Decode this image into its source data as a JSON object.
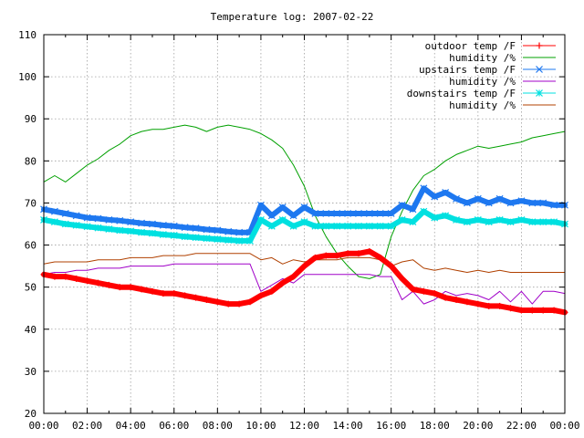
{
  "chart_data": {
    "type": "line",
    "title": "Temperature log: 2007-02-22",
    "xlabel": "",
    "ylabel": "",
    "xlim": [
      "00:00",
      "24:00"
    ],
    "ylim": [
      20,
      110
    ],
    "grid": true,
    "legend_placement": "top-right",
    "x_ticks": [
      "00:00",
      "02:00",
      "04:00",
      "06:00",
      "08:00",
      "10:00",
      "12:00",
      "14:00",
      "16:00",
      "18:00",
      "20:00",
      "22:00",
      "00:00"
    ],
    "y_ticks": [
      "20",
      "30",
      "40",
      "50",
      "60",
      "70",
      "80",
      "90",
      "100",
      "110"
    ],
    "x_hours": [
      0,
      0.5,
      1,
      1.5,
      2,
      2.5,
      3,
      3.5,
      4,
      4.5,
      5,
      5.5,
      6,
      6.5,
      7,
      7.5,
      8,
      8.5,
      9,
      9.5,
      10,
      10.5,
      11,
      11.5,
      12,
      12.5,
      13,
      13.5,
      14,
      14.5,
      15,
      15.5,
      16,
      16.5,
      17,
      17.5,
      18,
      18.5,
      19,
      19.5,
      20,
      20.5,
      21,
      21.5,
      22,
      22.5,
      23,
      23.5,
      24
    ],
    "series": [
      {
        "name": "outdoor temp /F",
        "color": "#ff0000",
        "marker": "plus",
        "values": [
          53,
          52.5,
          52.5,
          52,
          51.5,
          51,
          50.5,
          50,
          50,
          49.5,
          49,
          48.5,
          48.5,
          48,
          47.5,
          47,
          46.5,
          46,
          46,
          46.5,
          48,
          49,
          51,
          52.5,
          55,
          57,
          57.5,
          57.5,
          58,
          58,
          58.5,
          57,
          55,
          52,
          49.5,
          49,
          48.5,
          47.5,
          47,
          46.5,
          46,
          45.5,
          45.5,
          45,
          44.5,
          44.5,
          44.5,
          44.5,
          44
        ]
      },
      {
        "name": "humidity /%",
        "color": "#00a000",
        "marker": "none",
        "values": [
          75,
          76.5,
          75,
          77,
          79,
          80.5,
          82.5,
          84,
          86,
          87,
          87.5,
          87.5,
          88,
          88.5,
          88,
          87,
          88,
          88.5,
          88,
          87.5,
          86.5,
          85,
          83,
          79,
          74,
          67,
          62,
          58,
          55,
          52.5,
          52,
          53,
          62,
          68,
          73,
          76.5,
          78,
          80,
          81.5,
          82.5,
          83.5,
          83,
          83.5,
          84,
          84.5,
          85.5,
          86,
          86.5,
          87
        ]
      },
      {
        "name": "upstairs temp /F",
        "color": "#1e78f0",
        "marker": "x",
        "values": [
          68.5,
          68,
          67.5,
          67,
          66.5,
          66.3,
          66,
          65.8,
          65.5,
          65.2,
          65,
          64.7,
          64.5,
          64.2,
          64,
          63.7,
          63.5,
          63.2,
          63,
          63,
          69.5,
          67,
          69,
          67,
          69,
          67.5,
          67.5,
          67.5,
          67.5,
          67.5,
          67.5,
          67.5,
          67.5,
          69.5,
          68.5,
          73.5,
          71.5,
          72.5,
          71,
          70,
          71,
          70,
          71,
          70,
          70.5,
          70,
          70,
          69.5,
          69.5
        ]
      },
      {
        "name": "humidity /%",
        "color": "#a000c8",
        "marker": "none",
        "values": [
          53,
          53.5,
          53.5,
          54,
          54,
          54.5,
          54.5,
          54.5,
          55,
          55,
          55,
          55,
          55.5,
          55.5,
          55.5,
          55.5,
          55.5,
          55.5,
          55.5,
          55.5,
          49,
          50.5,
          52,
          51,
          53,
          53,
          53,
          53,
          53,
          53,
          53,
          52.5,
          52.5,
          47,
          49,
          46,
          47,
          49,
          48,
          48.5,
          48,
          47,
          49,
          46.5,
          49,
          46,
          49,
          49,
          48.5
        ]
      },
      {
        "name": "downstairs temp /F",
        "color": "#00e0e0",
        "marker": "star",
        "values": [
          66,
          65.5,
          65,
          64.7,
          64.4,
          64.1,
          63.8,
          63.5,
          63.3,
          63,
          62.8,
          62.5,
          62.3,
          62,
          61.8,
          61.6,
          61.4,
          61.2,
          61,
          61,
          66,
          64.5,
          66,
          64.5,
          65.5,
          64.5,
          64.5,
          64.5,
          64.5,
          64.5,
          64.5,
          64.5,
          64.5,
          66,
          65.5,
          68,
          66.5,
          67,
          66,
          65.5,
          66,
          65.5,
          66,
          65.5,
          66,
          65.5,
          65.5,
          65.5,
          65
        ]
      },
      {
        "name": "humidity /%",
        "color": "#b04000",
        "marker": "none",
        "values": [
          55.5,
          56,
          56,
          56,
          56,
          56.5,
          56.5,
          56.5,
          57,
          57,
          57,
          57.5,
          57.5,
          57.5,
          58,
          58,
          58,
          58,
          58,
          58,
          56.5,
          57,
          55.5,
          56.5,
          56,
          56.5,
          56.5,
          56.5,
          57,
          57,
          57,
          56.5,
          55,
          56,
          56.5,
          54.5,
          54,
          54.5,
          54,
          53.5,
          54,
          53.5,
          54,
          53.5,
          53.5,
          53.5,
          53.5,
          53.5,
          53.5
        ]
      }
    ]
  }
}
